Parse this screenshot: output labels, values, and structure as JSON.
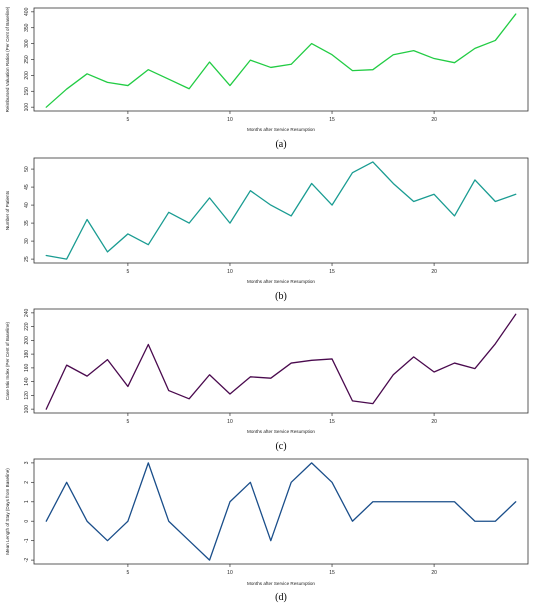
{
  "chart_data": [
    {
      "type": "line",
      "panel_label": "(a)",
      "xlabel": "Months after Service Resumption",
      "ylabel": "Reimbursed Valuation Ratios (Per Cent of Baseline)",
      "x": [
        1,
        2,
        3,
        4,
        5,
        6,
        7,
        8,
        9,
        10,
        11,
        12,
        13,
        14,
        15,
        16,
        17,
        18,
        19,
        20,
        21,
        22,
        23,
        24
      ],
      "values": [
        100,
        157,
        205,
        178,
        168,
        218,
        188,
        158,
        242,
        168,
        248,
        225,
        235,
        300,
        265,
        215,
        218,
        265,
        278,
        253,
        240,
        285,
        310,
        393
      ],
      "xticks": [
        5,
        10,
        15,
        20
      ],
      "yticks": [
        100,
        150,
        200,
        250,
        300,
        350,
        400
      ],
      "ylim": [
        100,
        400
      ],
      "color": "#22cc44"
    },
    {
      "type": "line",
      "panel_label": "(b)",
      "xlabel": "Months after Service Resumption",
      "ylabel": "Number of Patients",
      "x": [
        1,
        2,
        3,
        4,
        5,
        6,
        7,
        8,
        9,
        10,
        11,
        12,
        13,
        14,
        15,
        16,
        17,
        18,
        19,
        20,
        21,
        22,
        23,
        24
      ],
      "values": [
        26,
        25,
        36,
        27,
        32,
        29,
        38,
        35,
        42,
        35,
        44,
        40,
        37,
        46,
        40,
        49,
        52,
        46,
        41,
        43,
        37,
        47,
        41,
        43
      ],
      "xticks": [
        5,
        10,
        15,
        20
      ],
      "yticks": [
        25,
        30,
        35,
        40,
        45,
        50
      ],
      "ylim": [
        25,
        52
      ],
      "color": "#1a9c92"
    },
    {
      "type": "line",
      "panel_label": "(c)",
      "xlabel": "Months after Service Resumption",
      "ylabel": "Case Mix Index (Per Cent of Baseline)",
      "x": [
        1,
        2,
        3,
        4,
        5,
        6,
        7,
        8,
        9,
        10,
        11,
        12,
        13,
        14,
        15,
        16,
        17,
        18,
        19,
        20,
        21,
        22,
        23,
        24
      ],
      "values": [
        100,
        164,
        148,
        172,
        133,
        194,
        127,
        115,
        150,
        122,
        147,
        145,
        167,
        171,
        173,
        112,
        108,
        150,
        176,
        154,
        167,
        159,
        195,
        238
      ],
      "xticks": [
        5,
        10,
        15,
        20
      ],
      "yticks": [
        100,
        120,
        140,
        160,
        180,
        200,
        220,
        240
      ],
      "ylim": [
        100,
        240
      ],
      "color": "#4a0a4e"
    },
    {
      "type": "line",
      "panel_label": "(d)",
      "xlabel": "Months after Service Resumption",
      "ylabel": "Mean Length of Stay (Days from Baseline)",
      "x": [
        1,
        2,
        3,
        4,
        5,
        6,
        7,
        8,
        9,
        10,
        11,
        12,
        13,
        14,
        15,
        16,
        17,
        18,
        19,
        20,
        21,
        22,
        23,
        24
      ],
      "values": [
        0,
        2,
        0,
        -1,
        0,
        3,
        0,
        -1,
        -2,
        1,
        2,
        -1,
        2,
        3,
        2,
        0,
        1,
        1,
        1,
        1,
        1,
        0,
        0,
        1
      ],
      "xticks": [
        5,
        10,
        15,
        20
      ],
      "yticks": [
        -2,
        -1,
        0,
        1,
        2,
        3
      ],
      "ylim": [
        -2,
        3
      ],
      "color": "#1a4e8a"
    }
  ]
}
